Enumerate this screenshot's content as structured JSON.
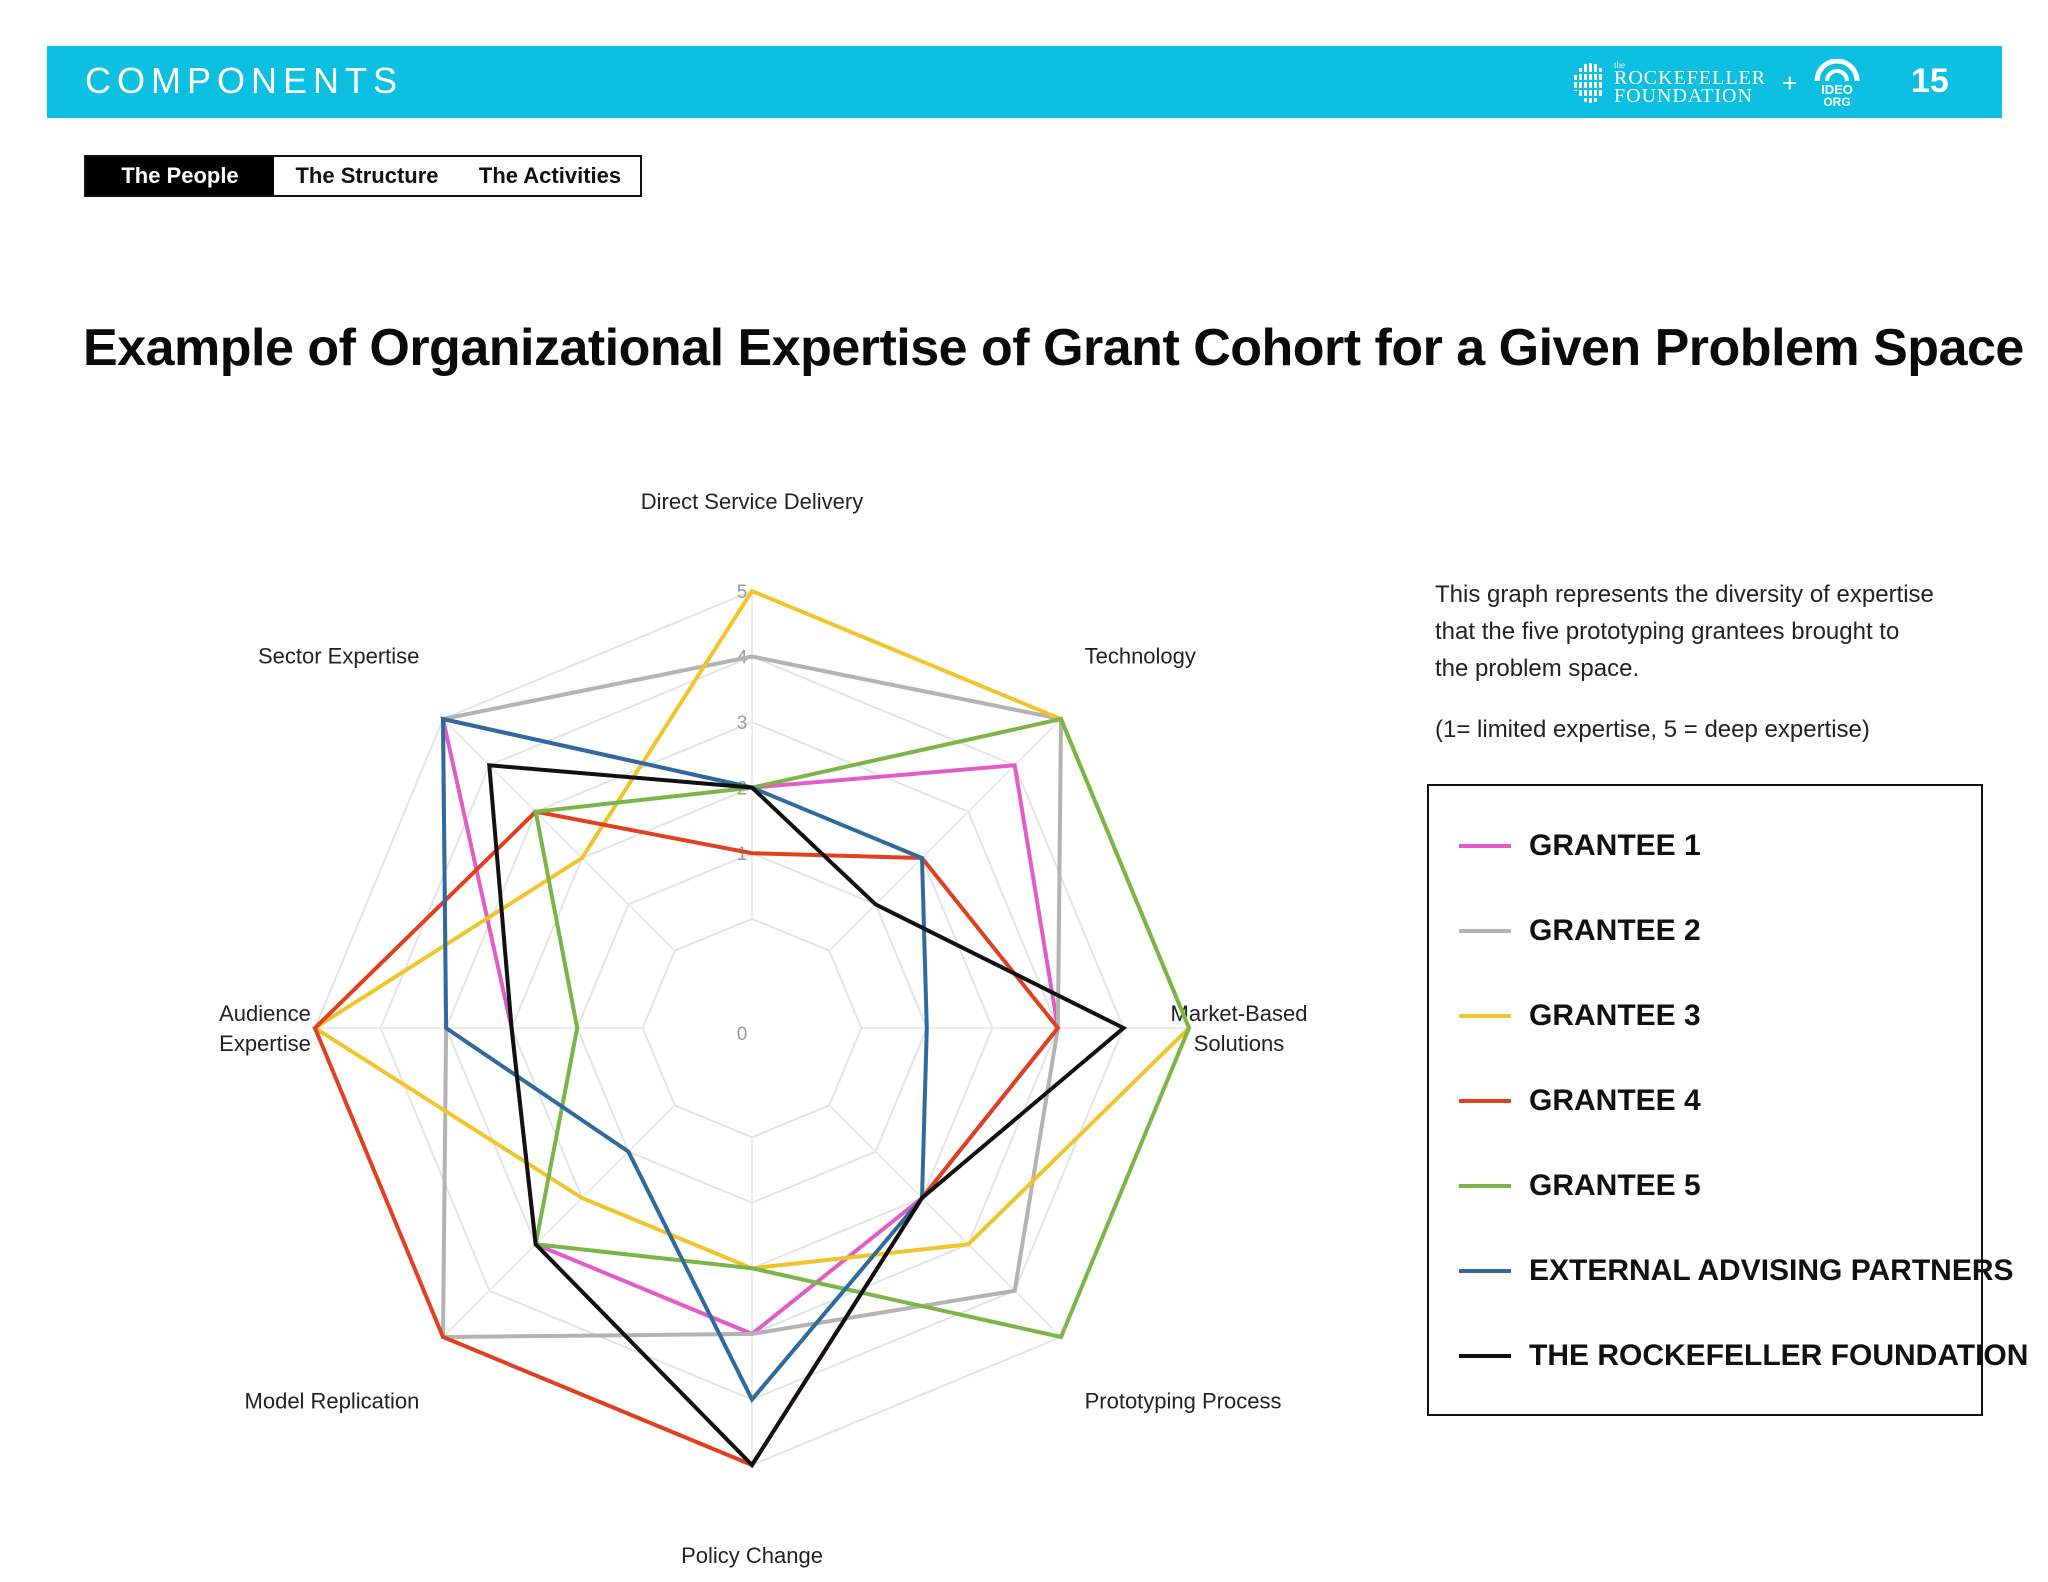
{
  "header": {
    "section_title": "COMPONENTS",
    "page_number": "15",
    "logo_rf_small": "the",
    "logo_rf_line1": "ROCKEFELLER",
    "logo_rf_line2": "FOUNDATION",
    "logo_plus": "+",
    "logo_ideo_line1": "IDEO",
    "logo_ideo_line2": "ORG",
    "accent_color": "#0dbfe0"
  },
  "tabs": [
    {
      "label": "The People",
      "active": true
    },
    {
      "label": "The Structure",
      "active": false
    },
    {
      "label": "The Activities",
      "active": false
    }
  ],
  "page_title": "Example of Organizational Expertise of Grant Cohort for a Given Problem Space",
  "description": "This graph represents the diversity of expertise that the five prototyping grantees brought to the problem space.",
  "scale_note": "(1= limited expertise, 5 = deep expertise)",
  "chart_data": {
    "type": "radar",
    "axes": [
      "Direct Service Delivery",
      "Technology",
      "Market-Based Solutions",
      "Prototyping Process",
      "Policy Change",
      "Model Replication",
      "Audience Expertise",
      "Sector Expertise"
    ],
    "axis_label_lines": [
      [
        "Direct Service Delivery"
      ],
      [
        "Technology"
      ],
      [
        "Market-Based",
        "Solutions"
      ],
      [
        "Prototyping Process"
      ],
      [
        "Policy Change"
      ],
      [
        "Model Replication"
      ],
      [
        "Audience",
        "Expertise"
      ],
      [
        "Sector Expertise"
      ]
    ],
    "ticks": [
      "0",
      "1",
      "2",
      "3",
      "4",
      "5"
    ],
    "range": [
      0,
      5
    ],
    "grid": true,
    "legend_position": "right",
    "series": [
      {
        "name": "GRANTEE 1",
        "color": "#e25cc8",
        "values": [
          2,
          4,
          3,
          2,
          3,
          3,
          2,
          5
        ]
      },
      {
        "name": "GRANTEE 2",
        "color": "#b3b3b3",
        "values": [
          4,
          5,
          3,
          4,
          3,
          5,
          3,
          5
        ]
      },
      {
        "name": "GRANTEE 3",
        "color": "#f2c42b",
        "values": [
          5,
          5,
          5,
          3,
          2,
          2,
          5,
          2
        ]
      },
      {
        "name": "GRANTEE 4",
        "color": "#e0401f",
        "values": [
          1,
          2,
          3,
          2,
          5,
          5,
          5,
          3
        ]
      },
      {
        "name": "GRANTEE 5",
        "color": "#7ab548",
        "values": [
          2,
          5,
          5,
          5,
          2,
          3,
          1,
          3
        ]
      },
      {
        "name": "EXTERNAL ADVISING PARTNERS",
        "color": "#2f6a9e",
        "values": [
          2,
          2,
          1,
          2,
          4,
          1,
          3,
          5
        ]
      },
      {
        "name": "THE ROCKEFELLER FOUNDATION",
        "color": "#111111",
        "values": [
          2,
          1,
          4,
          2,
          5,
          3,
          2,
          4
        ]
      }
    ]
  }
}
